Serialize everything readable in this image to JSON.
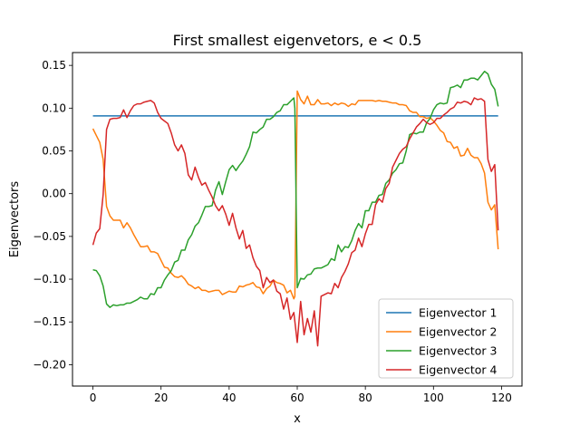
{
  "chart_data": {
    "type": "line",
    "title": "First smallest eigenvetors, e < 0.5",
    "xlabel": "x",
    "ylabel": "Eigenvectors",
    "xlim": [
      -6,
      126
    ],
    "ylim": [
      -0.225,
      0.165
    ],
    "xticks": [
      0,
      20,
      40,
      60,
      80,
      100,
      120
    ],
    "xtick_labels": [
      "0",
      "20",
      "40",
      "60",
      "80",
      "100",
      "120"
    ],
    "yticks": [
      -0.2,
      -0.15,
      -0.1,
      -0.05,
      0.0,
      0.05,
      0.1,
      0.15
    ],
    "ytick_labels": [
      "−0.20",
      "−0.15",
      "−0.10",
      "−0.05",
      "0.00",
      "0.05",
      "0.10",
      "0.15"
    ],
    "grid": false,
    "legend_position": "lower-right",
    "series": [
      {
        "name": "Eigenvector 1",
        "color": "#1f77b4",
        "x": [
          0,
          119
        ],
        "y": [
          0.091,
          0.091
        ]
      },
      {
        "name": "Eigenvector 2",
        "color": "#ff7f0e",
        "x": [
          0,
          1,
          2,
          3,
          4,
          5,
          6,
          7,
          8,
          9,
          10,
          11,
          12,
          13,
          14,
          15,
          16,
          17,
          18,
          19,
          20,
          21,
          22,
          23,
          24,
          25,
          26,
          27,
          28,
          29,
          30,
          31,
          32,
          33,
          34,
          35,
          36,
          37,
          38,
          39,
          40,
          41,
          42,
          43,
          44,
          45,
          46,
          47,
          48,
          49,
          50,
          51,
          52,
          53,
          54,
          55,
          56,
          57,
          58,
          59,
          59.3,
          60,
          61,
          62,
          63,
          64,
          65,
          66,
          67,
          68,
          69,
          70,
          71,
          72,
          73,
          74,
          75,
          76,
          77,
          78,
          79,
          80,
          81,
          82,
          83,
          84,
          85,
          86,
          87,
          88,
          89,
          90,
          91,
          92,
          93,
          94,
          95,
          96,
          97,
          98,
          99,
          100,
          101,
          102,
          103,
          104,
          105,
          106,
          107,
          108,
          109,
          110,
          111,
          112,
          113,
          114,
          115,
          116,
          117,
          118,
          119
        ],
        "y": [
          0.076,
          0.068,
          0.06,
          0.04,
          -0.015,
          -0.026,
          -0.031,
          -0.031,
          -0.031,
          -0.04,
          -0.034,
          -0.04,
          -0.048,
          -0.055,
          -0.062,
          -0.062,
          -0.061,
          -0.068,
          -0.068,
          -0.07,
          -0.078,
          -0.086,
          -0.087,
          -0.093,
          -0.097,
          -0.098,
          -0.096,
          -0.1,
          -0.106,
          -0.108,
          -0.111,
          -0.109,
          -0.113,
          -0.113,
          -0.115,
          -0.114,
          -0.113,
          -0.113,
          -0.118,
          -0.116,
          -0.114,
          -0.115,
          -0.115,
          -0.108,
          -0.109,
          -0.107,
          -0.106,
          -0.104,
          -0.109,
          -0.11,
          -0.117,
          -0.111,
          -0.108,
          -0.101,
          -0.104,
          -0.105,
          -0.107,
          -0.116,
          -0.113,
          -0.123,
          -0.12,
          0.12,
          0.11,
          0.105,
          0.114,
          0.104,
          0.104,
          0.11,
          0.105,
          0.105,
          0.106,
          0.103,
          0.106,
          0.104,
          0.106,
          0.105,
          0.102,
          0.105,
          0.104,
          0.109,
          0.109,
          0.109,
          0.109,
          0.109,
          0.108,
          0.109,
          0.108,
          0.108,
          0.107,
          0.106,
          0.106,
          0.104,
          0.104,
          0.103,
          0.097,
          0.095,
          0.095,
          0.09,
          0.09,
          0.088,
          0.089,
          0.085,
          0.08,
          0.074,
          0.071,
          0.061,
          0.06,
          0.053,
          0.055,
          0.044,
          0.045,
          0.053,
          0.045,
          0.042,
          0.042,
          0.035,
          0.024,
          -0.01,
          -0.019,
          -0.013,
          -0.065
        ]
      },
      {
        "name": "Eigenvector 3",
        "color": "#2ca02c",
        "x": [
          0,
          1,
          2,
          3,
          4,
          5,
          6,
          7,
          8,
          9,
          10,
          11,
          12,
          13,
          14,
          15,
          16,
          17,
          18,
          19,
          20,
          21,
          22,
          23,
          24,
          25,
          26,
          27,
          28,
          29,
          30,
          31,
          32,
          33,
          34,
          35,
          36,
          37,
          38,
          39,
          40,
          41,
          42,
          43,
          44,
          45,
          46,
          47,
          48,
          49,
          50,
          51,
          52,
          53,
          54,
          55,
          56,
          57,
          58,
          59,
          59.3,
          60,
          61,
          62,
          63,
          64,
          65,
          66,
          67,
          68,
          69,
          70,
          71,
          72,
          73,
          74,
          75,
          76,
          77,
          78,
          79,
          80,
          81,
          82,
          83,
          84,
          85,
          86,
          87,
          88,
          89,
          90,
          91,
          92,
          93,
          94,
          95,
          96,
          97,
          98,
          99,
          100,
          101,
          102,
          103,
          104,
          105,
          106,
          107,
          108,
          109,
          110,
          111,
          112,
          113,
          114,
          115,
          116,
          117,
          118,
          119
        ],
        "y": [
          -0.089,
          -0.09,
          -0.096,
          -0.108,
          -0.129,
          -0.133,
          -0.13,
          -0.131,
          -0.13,
          -0.13,
          -0.128,
          -0.128,
          -0.126,
          -0.124,
          -0.121,
          -0.123,
          -0.123,
          -0.117,
          -0.118,
          -0.11,
          -0.11,
          -0.101,
          -0.095,
          -0.09,
          -0.08,
          -0.078,
          -0.066,
          -0.066,
          -0.054,
          -0.048,
          -0.038,
          -0.034,
          -0.025,
          -0.015,
          -0.015,
          -0.014,
          0.004,
          0.014,
          -0.001,
          0.014,
          0.028,
          0.033,
          0.027,
          0.033,
          0.038,
          0.046,
          0.055,
          0.072,
          0.071,
          0.075,
          0.078,
          0.087,
          0.087,
          0.09,
          0.095,
          0.097,
          0.104,
          0.104,
          0.108,
          0.112,
          0.1,
          -0.11,
          -0.099,
          -0.1,
          -0.095,
          -0.094,
          -0.088,
          -0.087,
          -0.087,
          -0.085,
          -0.083,
          -0.076,
          -0.078,
          -0.06,
          -0.068,
          -0.062,
          -0.063,
          -0.055,
          -0.043,
          -0.035,
          -0.04,
          -0.02,
          -0.02,
          -0.01,
          -0.01,
          -0.002,
          -0.001,
          0.012,
          0.016,
          0.024,
          0.028,
          0.035,
          0.036,
          0.05,
          0.069,
          0.071,
          0.07,
          0.072,
          0.072,
          0.083,
          0.088,
          0.098,
          0.104,
          0.106,
          0.105,
          0.106,
          0.124,
          0.125,
          0.127,
          0.124,
          0.133,
          0.133,
          0.135,
          0.135,
          0.133,
          0.138,
          0.143,
          0.14,
          0.128,
          0.122,
          0.102
        ]
      },
      {
        "name": "Eigenvector 4",
        "color": "#d62728",
        "x": [
          0,
          1,
          2,
          3,
          4,
          5,
          6,
          7,
          8,
          9,
          10,
          11,
          12,
          13,
          14,
          15,
          16,
          17,
          18,
          19,
          20,
          21,
          22,
          23,
          24,
          25,
          26,
          27,
          28,
          29,
          30,
          31,
          32,
          33,
          34,
          35,
          36,
          37,
          38,
          39,
          40,
          41,
          42,
          43,
          44,
          45,
          46,
          47,
          48,
          49,
          50,
          51,
          52,
          53,
          54,
          55,
          56,
          57,
          58,
          59,
          60,
          61,
          62,
          63,
          64,
          65,
          66,
          67,
          68,
          69,
          70,
          71,
          72,
          73,
          74,
          75,
          76,
          77,
          78,
          79,
          80,
          81,
          82,
          83,
          84,
          85,
          86,
          87,
          88,
          89,
          90,
          91,
          92,
          93,
          94,
          95,
          96,
          97,
          98,
          99,
          100,
          101,
          102,
          103,
          104,
          105,
          106,
          107,
          108,
          109,
          110,
          111,
          112,
          113,
          114,
          115,
          116,
          117,
          118,
          119
        ],
        "y": [
          -0.06,
          -0.046,
          -0.041,
          -0.001,
          0.075,
          0.087,
          0.088,
          0.088,
          0.089,
          0.098,
          0.089,
          0.097,
          0.103,
          0.105,
          0.105,
          0.107,
          0.108,
          0.109,
          0.106,
          0.095,
          0.088,
          0.085,
          0.082,
          0.071,
          0.057,
          0.05,
          0.057,
          0.047,
          0.022,
          0.016,
          0.031,
          0.019,
          0.01,
          0.013,
          0.004,
          -0.004,
          -0.014,
          -0.02,
          -0.014,
          -0.024,
          -0.037,
          -0.023,
          -0.04,
          -0.053,
          -0.043,
          -0.064,
          -0.06,
          -0.075,
          -0.085,
          -0.09,
          -0.11,
          -0.098,
          -0.104,
          -0.101,
          -0.114,
          -0.117,
          -0.135,
          -0.122,
          -0.147,
          -0.139,
          -0.174,
          -0.126,
          -0.165,
          -0.146,
          -0.162,
          -0.137,
          -0.178,
          -0.12,
          -0.118,
          -0.116,
          -0.117,
          -0.105,
          -0.11,
          -0.098,
          -0.091,
          -0.082,
          -0.069,
          -0.066,
          -0.052,
          -0.062,
          -0.047,
          -0.036,
          -0.036,
          -0.013,
          -0.006,
          -0.01,
          0.006,
          0.012,
          0.031,
          0.039,
          0.047,
          0.052,
          0.055,
          0.064,
          0.071,
          0.078,
          0.082,
          0.087,
          0.083,
          0.081,
          0.083,
          0.088,
          0.088,
          0.092,
          0.095,
          0.099,
          0.101,
          0.107,
          0.106,
          0.108,
          0.107,
          0.104,
          0.112,
          0.11,
          0.111,
          0.108,
          0.04,
          0.026,
          0.034,
          -0.043
        ]
      }
    ]
  }
}
